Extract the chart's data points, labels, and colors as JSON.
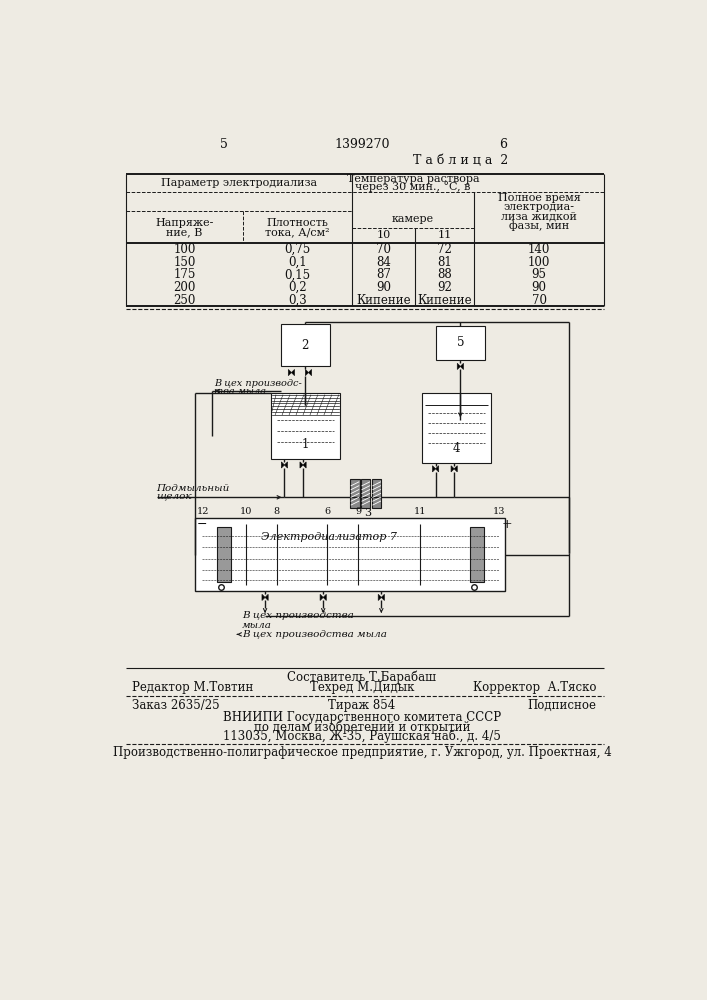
{
  "page_number_left": "5",
  "page_number_center": "1399270",
  "page_number_right": "6",
  "table_title": "Т а б л и ц а  2",
  "data_rows": [
    [
      "100",
      "0,75",
      "70",
      "72",
      "140"
    ],
    [
      "150",
      "0,1",
      "84",
      "81",
      "100"
    ],
    [
      "175",
      "0,15",
      "87",
      "88",
      "95"
    ],
    [
      "200",
      "0,2",
      "90",
      "92",
      "90"
    ],
    [
      "250",
      "0,3",
      "Кипение",
      "Кипение",
      "70"
    ]
  ],
  "footer_line1_center": "Составитель Т.Барабаш",
  "footer_line2_left": "Редактор М.Товтин",
  "footer_line2_center": "Техред М.Дидык",
  "footer_line2_right": "Корректор  А.Тяско",
  "footer_line3_left": "Заказ 2635/25",
  "footer_line3_center": "Тираж 854",
  "footer_line3_right": "Подписное",
  "footer_line4": "ВНИИПИ Государственного комитета СССР",
  "footer_line5": "по делам изобретений и открытий",
  "footer_line6": "113035, Москва, Ж-35, Раушская наб., д. 4/5",
  "footer_line7": "Производственно-полиграфическое предприятие, г. Ужгород, ул. Проектная, 4",
  "bg_color": "#eeebe3",
  "line_color": "#1a1a1a",
  "text_color": "#111111"
}
